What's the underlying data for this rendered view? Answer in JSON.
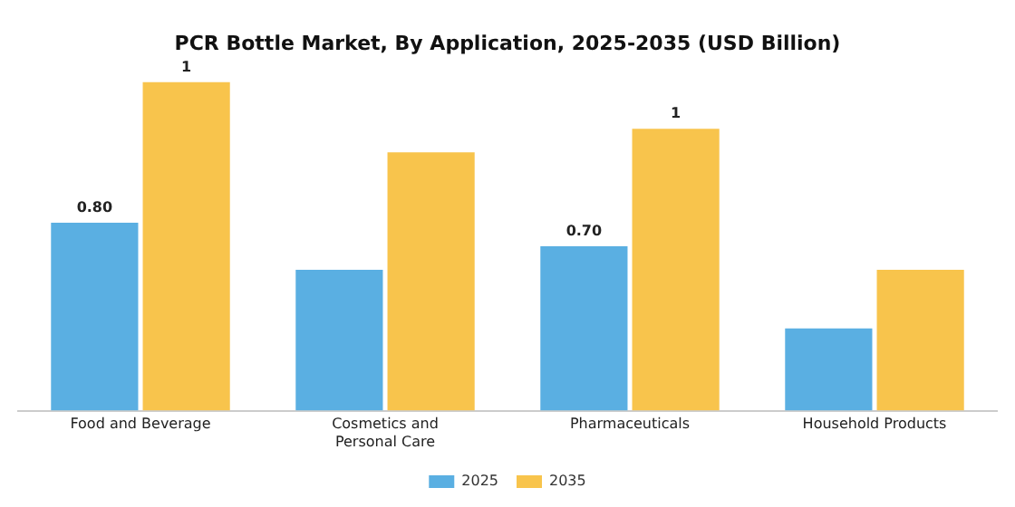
{
  "chart_data": {
    "type": "bar",
    "title": "PCR Bottle Market, By Application, 2025-2035 (USD Billion)",
    "categories": [
      "Food and Beverage",
      "Cosmetics and Personal Care",
      "Pharmaceuticals",
      "Household Products"
    ],
    "series": [
      {
        "name": "2025",
        "color": "#5aafe2",
        "values": [
          0.8,
          0.6,
          0.7,
          0.35
        ],
        "value_labels": [
          "0.80",
          null,
          "0.70",
          null
        ]
      },
      {
        "name": "2035",
        "color": "#f8c44c",
        "values": [
          1.4,
          1.1,
          1.2,
          0.6
        ],
        "value_labels": [
          "1",
          null,
          "1",
          null
        ]
      }
    ],
    "grid": false,
    "legend": "bottom"
  }
}
